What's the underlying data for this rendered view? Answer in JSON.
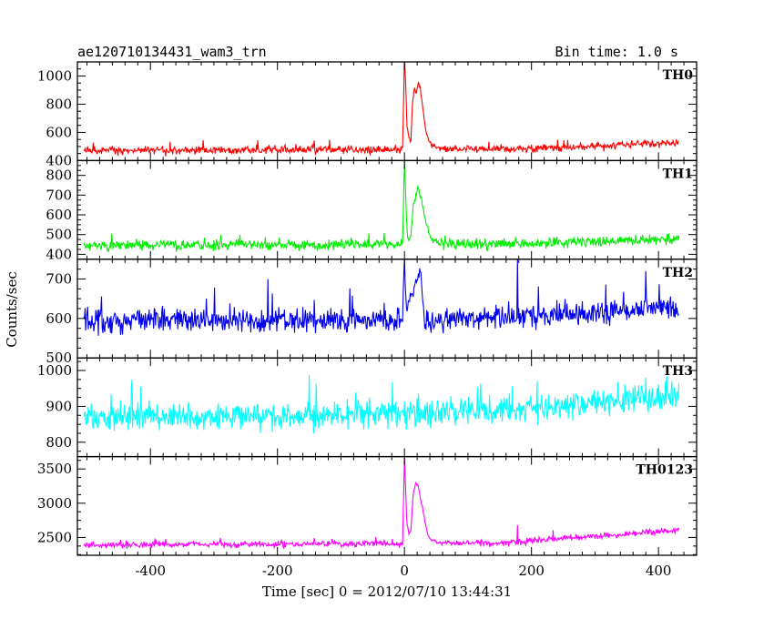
{
  "chart_data": {
    "type": "line",
    "title": "ae120710134431_wam3_trn",
    "subtitle": "Bin time: 1.0 s",
    "xlabel": "Time [sec] 0 = 2012/07/10 13:44:31",
    "ylabel": "Counts/sec",
    "xlim": [
      -515,
      460
    ],
    "x_ticks": [
      -400,
      -200,
      0,
      200,
      400
    ],
    "x_start": -505,
    "x_end": 432,
    "panels": [
      {
        "name": "TH0",
        "color": "#ff0000",
        "ylim": [
          400,
          1100
        ],
        "y_ticks": [
          400,
          600,
          800,
          1000
        ],
        "baseline": [
          [
            -505,
            470
          ],
          [
            200,
            485
          ],
          [
            300,
            500
          ],
          [
            432,
            530
          ]
        ],
        "noise": 22,
        "burst": [
          [
            -3,
            475
          ],
          [
            0,
            1150
          ],
          [
            2,
            920
          ],
          [
            4,
            640
          ],
          [
            7,
            570
          ],
          [
            10,
            545
          ],
          [
            13,
            820
          ],
          [
            16,
            920
          ],
          [
            19,
            880
          ],
          [
            22,
            960
          ],
          [
            25,
            900
          ],
          [
            28,
            800
          ],
          [
            31,
            700
          ],
          [
            34,
            600
          ],
          [
            38,
            540
          ],
          [
            45,
            500
          ],
          [
            60,
            480
          ]
        ],
        "spikes": []
      },
      {
        "name": "TH1",
        "color": "#00ee00",
        "ylim": [
          375,
          875
        ],
        "y_ticks": [
          400,
          500,
          600,
          700,
          800
        ],
        "baseline": [
          [
            -505,
            445
          ],
          [
            100,
            450
          ],
          [
            300,
            465
          ],
          [
            432,
            480
          ]
        ],
        "noise": 20,
        "burst": [
          [
            -3,
            450
          ],
          [
            0,
            880
          ],
          [
            2,
            680
          ],
          [
            4,
            520
          ],
          [
            7,
            470
          ],
          [
            10,
            500
          ],
          [
            14,
            650
          ],
          [
            18,
            700
          ],
          [
            22,
            740
          ],
          [
            26,
            690
          ],
          [
            30,
            620
          ],
          [
            34,
            560
          ],
          [
            38,
            510
          ],
          [
            45,
            470
          ],
          [
            60,
            455
          ]
        ],
        "spikes": []
      },
      {
        "name": "TH2",
        "color": "#0000ee",
        "ylim": [
          500,
          750
        ],
        "y_ticks": [
          500,
          600,
          700
        ],
        "baseline": [
          [
            -505,
            595
          ],
          [
            0,
            595
          ],
          [
            250,
            610
          ],
          [
            432,
            630
          ]
        ],
        "noise": 24,
        "burst": [
          [
            -3,
            600
          ],
          [
            0,
            760
          ],
          [
            3,
            620
          ],
          [
            25,
            720
          ],
          [
            30,
            620
          ]
        ],
        "spikes": [
          [
            178,
            755
          ],
          [
            -215,
            700
          ],
          [
            380,
            720
          ]
        ]
      },
      {
        "name": "TH3",
        "color": "#00ffff",
        "ylim": [
          760,
          1035
        ],
        "y_ticks": [
          800,
          900,
          1000
        ],
        "baseline": [
          [
            -505,
            870
          ],
          [
            0,
            880
          ],
          [
            200,
            895
          ],
          [
            432,
            930
          ]
        ],
        "noise": 30,
        "burst": [],
        "spikes": []
      },
      {
        "name": "TH0123",
        "color": "#ff00ff",
        "ylim": [
          2240,
          3680
        ],
        "y_ticks": [
          2500,
          3000,
          3500
        ],
        "baseline": [
          [
            -505,
            2390
          ],
          [
            150,
            2420
          ],
          [
            300,
            2520
          ],
          [
            432,
            2610
          ]
        ],
        "noise": 35,
        "burst": [
          [
            -3,
            2400
          ],
          [
            0,
            3700
          ],
          [
            2,
            3150
          ],
          [
            4,
            2700
          ],
          [
            7,
            2550
          ],
          [
            10,
            2600
          ],
          [
            14,
            3150
          ],
          [
            18,
            3300
          ],
          [
            22,
            3250
          ],
          [
            26,
            3050
          ],
          [
            30,
            2850
          ],
          [
            34,
            2650
          ],
          [
            38,
            2520
          ],
          [
            45,
            2450
          ],
          [
            60,
            2410
          ]
        ],
        "spikes": [
          [
            178,
            2680
          ]
        ]
      }
    ],
    "grid": false,
    "legend": "none"
  }
}
